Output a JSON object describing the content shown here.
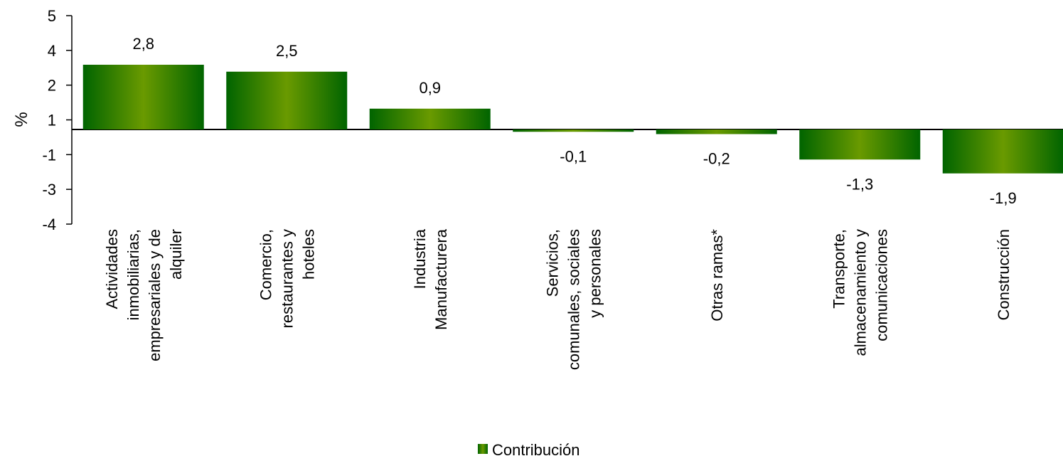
{
  "chart_data": {
    "type": "bar",
    "ylabel": "%",
    "y_tick_labels": [
      "5",
      "4",
      "2",
      "1",
      "-1",
      "-3",
      "-4"
    ],
    "categories": [
      [
        "Actividades",
        "inmobiliarias,",
        "empresariales y de",
        "alquiler"
      ],
      [
        "Comercio,",
        "restaurantes y",
        "hoteles"
      ],
      [
        "Industria",
        "Manufacturera"
      ],
      [
        "Servicios,",
        "comunales, sociales",
        "y personales"
      ],
      [
        "Otras ramas*"
      ],
      [
        "Transporte,",
        "almacenamiento y",
        "comunicaciones"
      ],
      [
        "Construcción"
      ]
    ],
    "series": [
      {
        "name": "Contribución",
        "values": [
          2.8,
          2.5,
          0.9,
          -0.1,
          -0.2,
          -1.3,
          -1.9
        ],
        "value_labels": [
          "2,8",
          "2,5",
          "0,9",
          "-0,1",
          "-0,2",
          "-1,3",
          "-1,9"
        ]
      }
    ],
    "legend_position": "bottom",
    "grid": false,
    "colors": {
      "bar_dark": "#006400",
      "bar_light": "#6a9a00"
    }
  }
}
